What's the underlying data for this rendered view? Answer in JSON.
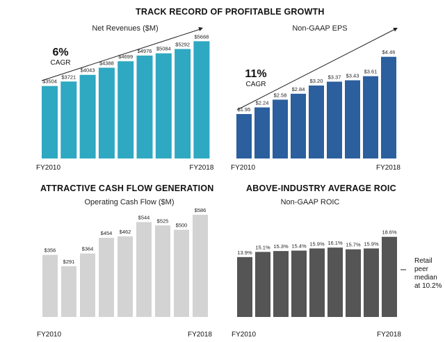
{
  "page": {
    "title": "TRACK RECORD OF PROFITABLE GROWTH",
    "section_cash": "ATTRACTIVE CASH FLOW GENERATION",
    "section_roic": "ABOVE-INDUSTRY AVERAGE ROIC"
  },
  "chart_data": [
    {
      "type": "bar",
      "title": "Net Revenues ($M)",
      "categories": [
        "FY2010",
        "",
        "",
        "",
        "",
        "",
        "",
        "",
        "FY2018"
      ],
      "values": [
        3504,
        3721,
        4043,
        4388,
        4699,
        4976,
        5084,
        5292,
        5668
      ],
      "labels": [
        "$3504",
        "$3721",
        "$4043",
        "$4388",
        "$4699",
        "$4976",
        "$5084",
        "$5292",
        "$5668"
      ],
      "color": "#2fa8c2",
      "cagr": {
        "value": "6%",
        "label": "CAGR"
      },
      "trend_arrow": true
    },
    {
      "type": "bar",
      "title": "Non-GAAP EPS",
      "categories": [
        "FY2010",
        "",
        "",
        "",
        "",
        "",
        "",
        "",
        "FY2018"
      ],
      "values": [
        1.95,
        2.24,
        2.58,
        2.84,
        3.2,
        3.37,
        3.43,
        3.61,
        4.46
      ],
      "labels": [
        "$1.95",
        "$2.24",
        "$2.58",
        "$2.84",
        "$3.20",
        "$3.37",
        "$3.43",
        "$3.61",
        "$4.46"
      ],
      "color": "#2b5f9e",
      "cagr": {
        "value": "11%",
        "label": "CAGR"
      },
      "trend_arrow": true
    },
    {
      "type": "bar",
      "title": "Operating Cash Flow ($M)",
      "categories": [
        "FY2010",
        "",
        "",
        "",
        "",
        "",
        "",
        "",
        "FY2018"
      ],
      "values": [
        356,
        291,
        364,
        454,
        462,
        544,
        525,
        500,
        586
      ],
      "labels": [
        "$356",
        "$291",
        "$364",
        "$454",
        "$462",
        "$544",
        "$525",
        "$500",
        "$586"
      ],
      "color": "#d3d3d3"
    },
    {
      "type": "bar",
      "title": "Non-GAAP ROIC",
      "categories": [
        "FY2010",
        "",
        "",
        "",
        "",
        "",
        "",
        "",
        "FY2018"
      ],
      "values": [
        13.9,
        15.1,
        15.3,
        15.4,
        15.9,
        16.1,
        15.7,
        15.9,
        18.6
      ],
      "labels": [
        "13.9%",
        "15.1%",
        "15.3%",
        "15.4%",
        "15.9%",
        "16.1%",
        "15.7%",
        "15.9%",
        "18.6%"
      ],
      "color": "#555555",
      "annotation": [
        "Retail",
        "peer",
        "median",
        "at 10.2%"
      ]
    }
  ]
}
